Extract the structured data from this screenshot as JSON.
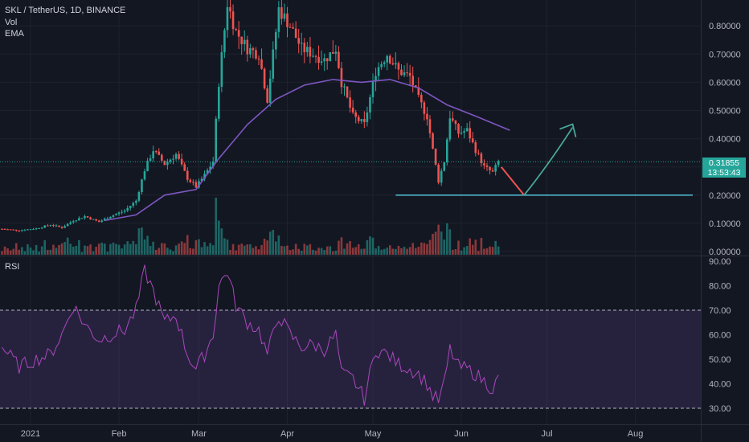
{
  "legend": {
    "title": "SKL / TetherUS, 1D, BINANCE",
    "line2": "Vol",
    "line3": "EMA"
  },
  "price_tag": {
    "price": "0.31855",
    "countdown": "13:53:43"
  },
  "colors": {
    "background": "#131722",
    "up": "#26a69a",
    "down": "#ef5350",
    "ema": "#7e57c2",
    "rsi": "#ab47bc",
    "support": "#4fb6c9",
    "projection_down": "#ef5350",
    "projection_up": "#4aa89b"
  },
  "chart_data": [
    {
      "type": "candlestick",
      "title": "SKL / TetherUS, 1D, BINANCE",
      "price_axis": {
        "ticks": [
          "0.80000",
          "0.70000",
          "0.60000",
          "0.50000",
          "0.40000",
          "0.30000",
          "0.20000",
          "0.10000",
          "0.00000"
        ],
        "range": [
          0.0,
          0.88
        ]
      },
      "time_axis": {
        "ticks": [
          "2021",
          "Feb",
          "Mar",
          "Apr",
          "May",
          "Jun",
          "Jul",
          "Aug"
        ]
      },
      "last_price": 0.31855,
      "price_path": [
        [
          "2020-12-22",
          0.08
        ],
        [
          "2020-12-28",
          0.075
        ],
        [
          "2021-01-03",
          0.082
        ],
        [
          "2021-01-08",
          0.095
        ],
        [
          "2021-01-12",
          0.085
        ],
        [
          "2021-01-16",
          0.11
        ],
        [
          "2021-01-20",
          0.125
        ],
        [
          "2021-01-25",
          0.105
        ],
        [
          "2021-01-29",
          0.125
        ],
        [
          "2021-02-03",
          0.145
        ],
        [
          "2021-02-07",
          0.18
        ],
        [
          "2021-02-10",
          0.29
        ],
        [
          "2021-02-13",
          0.36
        ],
        [
          "2021-02-17",
          0.31
        ],
        [
          "2021-02-21",
          0.345
        ],
        [
          "2021-02-25",
          0.26
        ],
        [
          "2021-02-28",
          0.23
        ],
        [
          "2021-03-03",
          0.27
        ],
        [
          "2021-03-06",
          0.32
        ],
        [
          "2021-03-08",
          0.6
        ],
        [
          "2021-03-11",
          0.88
        ],
        [
          "2021-03-14",
          0.78
        ],
        [
          "2021-03-18",
          0.72
        ],
        [
          "2021-03-22",
          0.7
        ],
        [
          "2021-03-25",
          0.54
        ],
        [
          "2021-03-29",
          0.86
        ],
        [
          "2021-04-02",
          0.8
        ],
        [
          "2021-04-06",
          0.72
        ],
        [
          "2021-04-10",
          0.7
        ],
        [
          "2021-04-14",
          0.68
        ],
        [
          "2021-04-18",
          0.72
        ],
        [
          "2021-04-20",
          0.6
        ],
        [
          "2021-04-24",
          0.48
        ],
        [
          "2021-04-28",
          0.45
        ],
        [
          "2021-05-02",
          0.64
        ],
        [
          "2021-05-06",
          0.7
        ],
        [
          "2021-05-10",
          0.64
        ],
        [
          "2021-05-14",
          0.62
        ],
        [
          "2021-05-17",
          0.54
        ],
        [
          "2021-05-20",
          0.48
        ],
        [
          "2021-05-22",
          0.36
        ],
        [
          "2021-05-24",
          0.25
        ],
        [
          "2021-05-26",
          0.32
        ],
        [
          "2021-05-28",
          0.48
        ],
        [
          "2021-05-31",
          0.42
        ],
        [
          "2021-06-03",
          0.43
        ],
        [
          "2021-06-06",
          0.36
        ],
        [
          "2021-06-09",
          0.3
        ],
        [
          "2021-06-12",
          0.28
        ],
        [
          "2021-06-14",
          0.3185
        ]
      ],
      "ema_path": [
        [
          "2021-01-27",
          0.11
        ],
        [
          "2021-02-07",
          0.13
        ],
        [
          "2021-02-17",
          0.2
        ],
        [
          "2021-02-28",
          0.22
        ],
        [
          "2021-03-08",
          0.33
        ],
        [
          "2021-03-18",
          0.45
        ],
        [
          "2021-03-28",
          0.54
        ],
        [
          "2021-04-07",
          0.59
        ],
        [
          "2021-04-17",
          0.61
        ],
        [
          "2021-04-27",
          0.6
        ],
        [
          "2021-05-07",
          0.61
        ],
        [
          "2021-05-17",
          0.58
        ],
        [
          "2021-05-27",
          0.52
        ],
        [
          "2021-06-06",
          0.48
        ],
        [
          "2021-06-18",
          0.43
        ]
      ],
      "annotations": {
        "support_level": 0.2,
        "projection_down": [
          [
            "2021-06-15",
            0.3
          ],
          [
            "2021-06-23",
            0.2
          ]
        ],
        "projection_up": [
          [
            "2021-06-23",
            0.2
          ],
          [
            "2021-07-01",
            0.3
          ],
          [
            "2021-07-10",
            0.44
          ]
        ]
      }
    },
    {
      "type": "line",
      "title": "RSI",
      "y_axis": {
        "ticks": [
          "90.00",
          "80.00",
          "70.00",
          "60.00",
          "50.00",
          "40.00",
          "30.00"
        ],
        "range": [
          25,
          90
        ]
      },
      "overbought": 70,
      "oversold": 30,
      "series": [
        {
          "name": "RSI",
          "values": [
            [
              "2020-12-22",
              55
            ],
            [
              "2020-12-28",
              47
            ],
            [
              "2021-01-03",
              50
            ],
            [
              "2021-01-08",
              52
            ],
            [
              "2021-01-12",
              60
            ],
            [
              "2021-01-16",
              72
            ],
            [
              "2021-01-20",
              64
            ],
            [
              "2021-01-25",
              58
            ],
            [
              "2021-01-29",
              60
            ],
            [
              "2021-02-03",
              62
            ],
            [
              "2021-02-07",
              70
            ],
            [
              "2021-02-10",
              86
            ],
            [
              "2021-02-13",
              78
            ],
            [
              "2021-02-17",
              65
            ],
            [
              "2021-02-21",
              68
            ],
            [
              "2021-02-25",
              52
            ],
            [
              "2021-02-28",
              46
            ],
            [
              "2021-03-03",
              52
            ],
            [
              "2021-03-06",
              60
            ],
            [
              "2021-03-08",
              80
            ],
            [
              "2021-03-11",
              86
            ],
            [
              "2021-03-14",
              72
            ],
            [
              "2021-03-18",
              65
            ],
            [
              "2021-03-22",
              62
            ],
            [
              "2021-03-25",
              52
            ],
            [
              "2021-03-29",
              68
            ],
            [
              "2021-04-02",
              60
            ],
            [
              "2021-04-06",
              55
            ],
            [
              "2021-04-10",
              56
            ],
            [
              "2021-04-14",
              54
            ],
            [
              "2021-04-18",
              60
            ],
            [
              "2021-04-20",
              44
            ],
            [
              "2021-04-24",
              42
            ],
            [
              "2021-04-28",
              34
            ],
            [
              "2021-05-02",
              54
            ],
            [
              "2021-05-06",
              52
            ],
            [
              "2021-05-10",
              48
            ],
            [
              "2021-05-14",
              46
            ],
            [
              "2021-05-17",
              44
            ],
            [
              "2021-05-20",
              40
            ],
            [
              "2021-05-22",
              35
            ],
            [
              "2021-05-24",
              33
            ],
            [
              "2021-05-26",
              40
            ],
            [
              "2021-05-28",
              54
            ],
            [
              "2021-05-31",
              47
            ],
            [
              "2021-06-03",
              46
            ],
            [
              "2021-06-06",
              44
            ],
            [
              "2021-06-09",
              41
            ],
            [
              "2021-06-12",
              38
            ],
            [
              "2021-06-14",
              42
            ]
          ]
        }
      ]
    }
  ]
}
